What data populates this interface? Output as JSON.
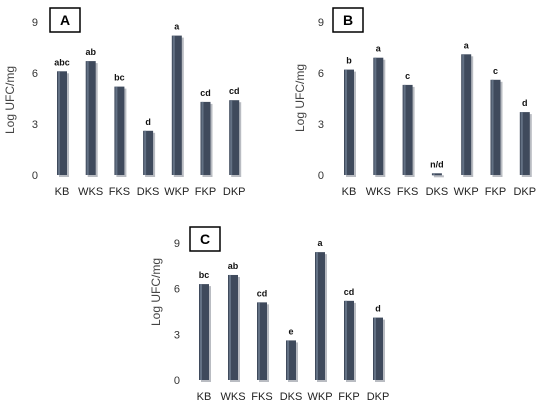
{
  "chart_data": [
    {
      "type": "bar",
      "title": "A",
      "ylabel": "Log UFC/mg",
      "ylim": [
        0,
        9
      ],
      "yticks": [
        "0",
        "3",
        "6",
        "9"
      ],
      "categories": [
        "KB",
        "WKS",
        "FKS",
        "DKS",
        "WKP",
        "FKP",
        "DKP"
      ],
      "values": [
        6.1,
        6.7,
        5.2,
        2.6,
        8.2,
        4.3,
        4.4
      ],
      "labels": [
        "abc",
        "ab",
        "bc",
        "d",
        "a",
        "cd",
        "cd"
      ],
      "bar_color": "#3f4a5c"
    },
    {
      "type": "bar",
      "title": "B",
      "ylabel": "Log UFC/mg",
      "ylim": [
        0,
        9
      ],
      "yticks": [
        "0",
        "3",
        "6",
        "9"
      ],
      "categories": [
        "KB",
        "WKS",
        "FKS",
        "DKS",
        "WKP",
        "FKP",
        "DKP"
      ],
      "values": [
        6.2,
        6.9,
        5.3,
        0.1,
        7.1,
        5.6,
        3.7
      ],
      "labels": [
        "b",
        "a",
        "c",
        "n/d",
        "a",
        "c",
        "d"
      ],
      "bar_color": "#3f4a5c"
    },
    {
      "type": "bar",
      "title": "C",
      "ylabel": "Log UFC/mg",
      "ylim": [
        0,
        9
      ],
      "yticks": [
        "0",
        "3",
        "6",
        "9"
      ],
      "categories": [
        "KB",
        "WKS",
        "FKS",
        "DKS",
        "WKP",
        "FKP",
        "DKP"
      ],
      "values": [
        6.3,
        6.9,
        5.1,
        2.6,
        8.4,
        5.2,
        4.1
      ],
      "labels": [
        "bc",
        "ab",
        "cd",
        "e",
        "a",
        "cd",
        "d"
      ],
      "bar_color": "#3f4a5c"
    }
  ]
}
